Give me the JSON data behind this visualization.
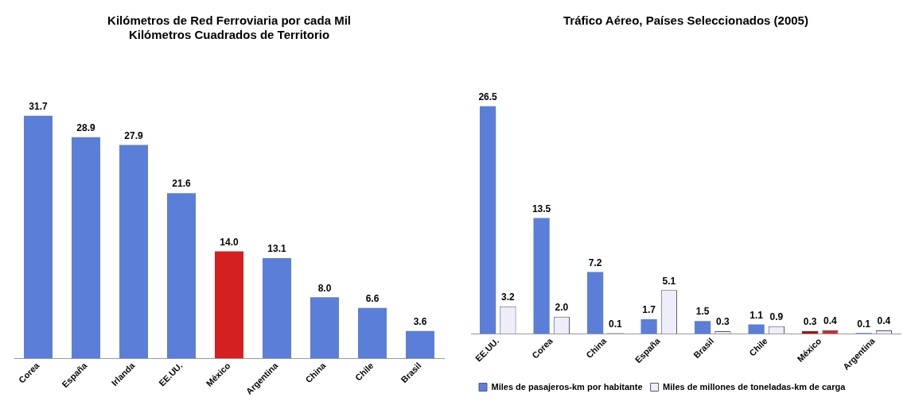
{
  "chart_data": [
    {
      "type": "bar",
      "title": [
        "Kilómetros de Red Ferroviaria por cada Mil",
        "Kilómetros Cuadrados de Territorio"
      ],
      "categories": [
        "Corea",
        "España",
        "Irlanda",
        "EE.UU.",
        "México",
        "Argentina",
        "China",
        "Chile",
        "Brasil"
      ],
      "values": [
        31.7,
        28.9,
        27.9,
        21.6,
        14.0,
        13.1,
        8.0,
        6.6,
        3.6
      ],
      "colors": [
        "#5b7fd8",
        "#5b7fd8",
        "#5b7fd8",
        "#5b7fd8",
        "#d42020",
        "#5b7fd8",
        "#5b7fd8",
        "#5b7fd8",
        "#5b7fd8"
      ],
      "value_labels": [
        "31.7",
        "28.9",
        "27.9",
        "21.6",
        "14.0",
        "13.1",
        "8.0",
        "6.6",
        "3.6"
      ],
      "tick_labels": "x",
      "grid": false,
      "legend": false
    },
    {
      "type": "bar",
      "title": "Tráfico Aéreo, Países Seleccionados (2005)",
      "categories": [
        "EE.UU.",
        "Corea",
        "China",
        "España",
        "Brasil",
        "Chile",
        "México",
        "Argentina"
      ],
      "series": [
        {
          "name": "Miles de pasajeros-km por habitante",
          "color": "#5b7fd8",
          "colors": [
            "#5b7fd8",
            "#5b7fd8",
            "#5b7fd8",
            "#5b7fd8",
            "#5b7fd8",
            "#5b7fd8",
            "#a01818",
            "#5b7fd8"
          ],
          "values": [
            26.5,
            13.5,
            7.2,
            1.7,
            1.5,
            1.1,
            0.3,
            0.1
          ],
          "value_labels": [
            "26.5",
            "13.5",
            "7.2",
            "1.7",
            "1.5",
            "1.1",
            "0.3",
            "0.1"
          ]
        },
        {
          "name": "Miles de millones de toneladas-km de carga",
          "color": "#eeeef8",
          "colors": [
            "#eeeef8",
            "#eeeef8",
            "#eeeef8",
            "#eeeef8",
            "#eeeef8",
            "#eeeef8",
            "#e02828",
            "#eeeef8"
          ],
          "values": [
            3.2,
            2.0,
            0.1,
            5.1,
            0.3,
            0.9,
            0.4,
            0.4
          ],
          "value_labels": [
            "3.2",
            "2.0",
            "0.1",
            "5.1",
            "0.3",
            "0.9",
            "0.4",
            "0.4"
          ]
        }
      ],
      "tick_labels": "x",
      "grid": false,
      "legend": "bottom"
    }
  ]
}
